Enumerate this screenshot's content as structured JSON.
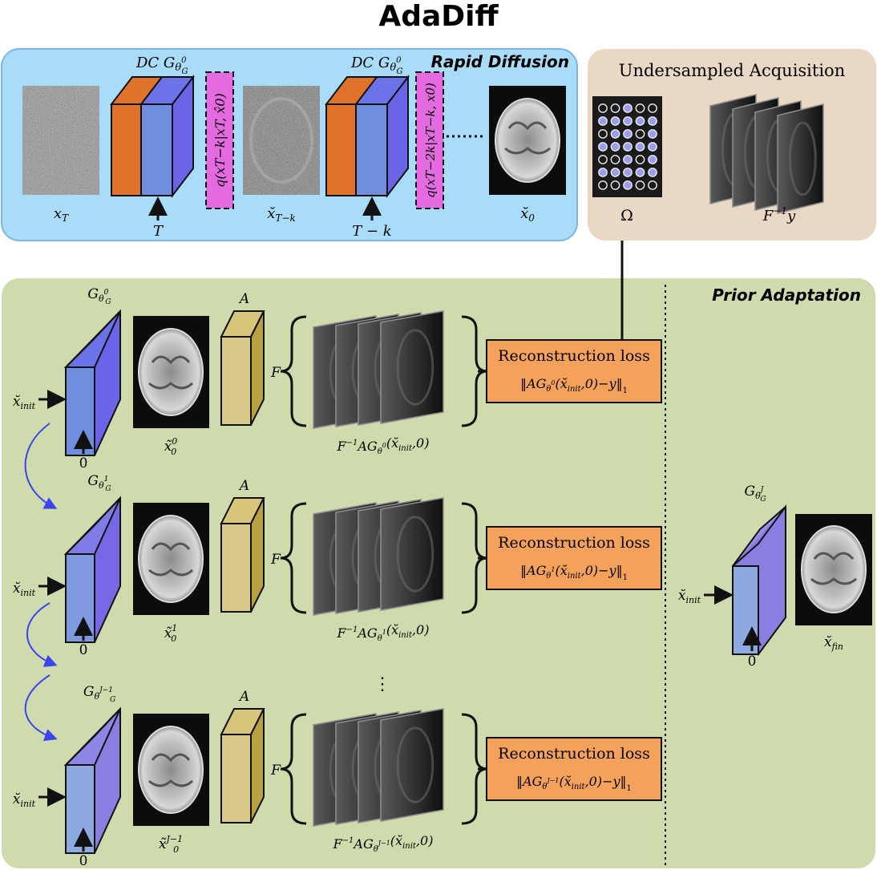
{
  "title": "AdaDiff",
  "colors": {
    "rapid_panel_fill": "#a9dcf8",
    "rapid_panel_stroke": "#7fb6e6",
    "acq_panel_fill": "#e8d8c4",
    "prior_panel_fill": "#cfdbac",
    "loss_box_fill": "#f4a15c",
    "q_box_fill": "#e46ae0",
    "dc_orange": "#e0732a",
    "gen_purple": "#6b63e8",
    "gen_blue": "#6f8ee0",
    "a_gold": "#c9b35a",
    "recurse_arrow": "#3a45f0",
    "mask_dot_on": "#9c9df0"
  },
  "rapid_diffusion": {
    "label": "Rapid Diffusion",
    "dc_label": "DC G",
    "dc_sub": "θ",
    "dc_sup": "0",
    "dc_subsub": "G",
    "noise_label": "x",
    "noise_sub": "T",
    "step1_input": "T",
    "q1": "q(xT−k|xT, x̂0)",
    "mid_label": "x̆",
    "mid_sub": "T−k",
    "step2_input": "T − k",
    "q2": "q(xT−2k|xT−k, x0)",
    "out_label": "x̆",
    "out_sub": "0"
  },
  "acquisition": {
    "title": "Undersampled Acquisition",
    "mask_label": "Ω",
    "mask_grid": [
      [
        0,
        0,
        1,
        0,
        0
      ],
      [
        1,
        1,
        1,
        1,
        1
      ],
      [
        0,
        1,
        1,
        0,
        1
      ],
      [
        1,
        1,
        1,
        1,
        1
      ],
      [
        0,
        0,
        1,
        0,
        1
      ],
      [
        1,
        1,
        1,
        1,
        1
      ],
      [
        0,
        0,
        1,
        0,
        0
      ]
    ],
    "coil_label": "F",
    "coil_sup": "−1",
    "coil_var": "y"
  },
  "prior_adaptation": {
    "label": "Prior Adaptation",
    "input_label": "x̆",
    "input_sub": "init",
    "zero": "0",
    "a_label": "A",
    "f_label": "F",
    "loss_title": "Reconstruction loss",
    "rows": [
      {
        "gen_sup": "0",
        "recon_sup": "0",
        "loss_sup": "0"
      },
      {
        "gen_sup": "1",
        "recon_sup": "1",
        "loss_sup": "1"
      },
      {
        "gen_sup": "J−1",
        "recon_sup": "J−1",
        "loss_sup": "J−1"
      }
    ],
    "final_gen_sup": "J",
    "final_label": "x̆",
    "final_sub": "fin"
  }
}
